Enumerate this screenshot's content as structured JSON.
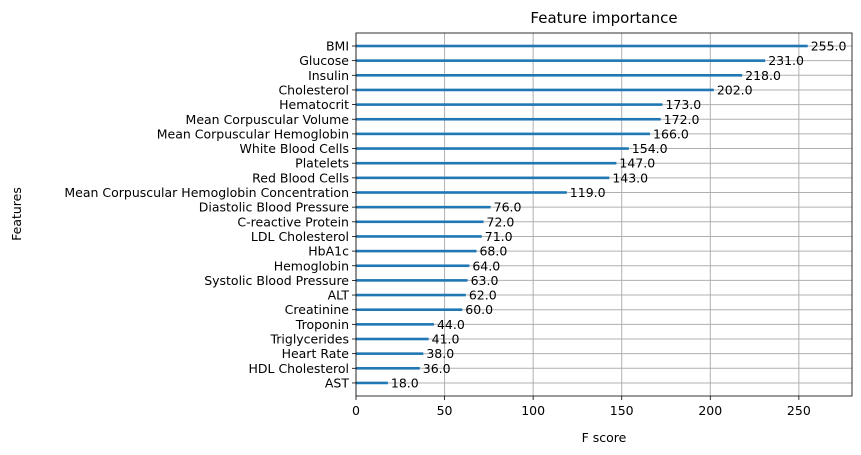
{
  "chart_data": {
    "type": "bar",
    "orientation": "horizontal",
    "title": "Feature importance",
    "xlabel": "F score",
    "ylabel": "Features",
    "xlim": [
      0,
      280
    ],
    "xticks": [
      0,
      50,
      100,
      150,
      200,
      250
    ],
    "grid": true,
    "bar_color": "#1f77b4",
    "categories": [
      "BMI",
      "Glucose",
      "Insulin",
      "Cholesterol",
      "Hematocrit",
      "Mean Corpuscular Volume",
      "Mean Corpuscular Hemoglobin",
      "White Blood Cells",
      "Platelets",
      "Red Blood Cells",
      "Mean Corpuscular Hemoglobin Concentration",
      "Diastolic Blood Pressure",
      "C-reactive Protein",
      "LDL Cholesterol",
      "HbA1c",
      "Hemoglobin",
      "Systolic Blood Pressure",
      "ALT",
      "Creatinine",
      "Troponin",
      "Triglycerides",
      "Heart Rate",
      "HDL Cholesterol",
      "AST"
    ],
    "values": [
      255,
      231,
      218,
      202,
      173,
      172,
      166,
      154,
      147,
      143,
      119,
      76,
      72,
      71,
      68,
      64,
      63,
      62,
      60,
      44,
      41,
      38,
      36,
      18
    ],
    "value_labels": [
      "255.0",
      "231.0",
      "218.0",
      "202.0",
      "173.0",
      "172.0",
      "166.0",
      "154.0",
      "147.0",
      "143.0",
      "119.0",
      "76.0",
      "72.0",
      "71.0",
      "68.0",
      "64.0",
      "63.0",
      "62.0",
      "60.0",
      "44.0",
      "41.0",
      "38.0",
      "36.0",
      "18.0"
    ]
  }
}
